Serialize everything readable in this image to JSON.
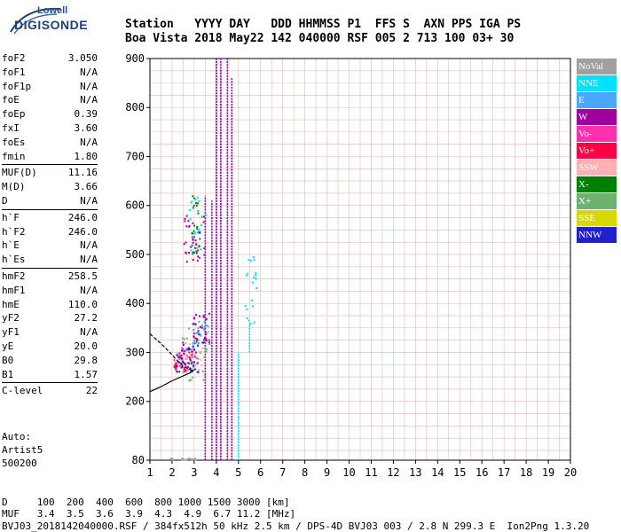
{
  "logo": {
    "top": "Lowell",
    "bottom": "DIGISONDE"
  },
  "header": {
    "line1": "Station   YYYY DAY   DDD HHMMSS P1  FFS S  AXN PPS IGA PS",
    "line2": "Boa Vista 2018 May22 142 040000 RSF 005 2 713 100 03+ 30"
  },
  "params": [
    {
      "name": "foF2",
      "value": "3.050"
    },
    {
      "name": "foF1",
      "value": "N/A"
    },
    {
      "name": "foF1p",
      "value": "N/A"
    },
    {
      "name": "foE",
      "value": "N/A"
    },
    {
      "name": "foEp",
      "value": "0.39"
    },
    {
      "name": "fxI",
      "value": "3.60"
    },
    {
      "name": "foEs",
      "value": "N/A"
    },
    {
      "name": "fmin",
      "value": "1.80"
    },
    {
      "sep": true
    },
    {
      "name": "MUF(D)",
      "value": "11.16"
    },
    {
      "name": "M(D)",
      "value": "3.66"
    },
    {
      "name": "D",
      "value": "N/A"
    },
    {
      "sep": true
    },
    {
      "name": "h`F",
      "value": "246.0"
    },
    {
      "name": "h`F2",
      "value": "246.0"
    },
    {
      "name": "h`E",
      "value": "N/A"
    },
    {
      "name": "h`Es",
      "value": "N/A"
    },
    {
      "sep": true
    },
    {
      "name": "hmF2",
      "value": "258.5"
    },
    {
      "name": "hmF1",
      "value": "N/A"
    },
    {
      "name": "hmE",
      "value": "110.0"
    },
    {
      "name": "yF2",
      "value": "27.2"
    },
    {
      "name": "yF1",
      "value": "N/A"
    },
    {
      "name": "yE",
      "value": "20.0"
    },
    {
      "name": "B0",
      "value": "29.8"
    },
    {
      "name": "B1",
      "value": "1.57"
    },
    {
      "sep": true
    },
    {
      "name": "C-level",
      "value": "22"
    }
  ],
  "auto": [
    "Auto:",
    "Artist5",
    "500200"
  ],
  "footer": {
    "line1": "D     100  200  400  600  800 1000 1500 3000 [km]",
    "line2": "MUF   3.4  3.5  3.6  3.9  4.3  4.9  6.7 11.2 [MHz]",
    "line3": "BVJ03_2018142040000.RSF / 384fx512h 50 kHz 2.5 km / DPS-4D BVJ03 003 / 2.8 N 299.3 E  Ion2Png 1.3.20"
  },
  "legend": [
    {
      "label": "NoVal",
      "color": "#a0a0a0"
    },
    {
      "label": "NNE",
      "color": "#00e0ff"
    },
    {
      "label": "E",
      "color": "#48a8ff"
    },
    {
      "label": "W",
      "color": "#a000a0"
    },
    {
      "label": "Vo-",
      "color": "#ff30b0"
    },
    {
      "label": "Vo+",
      "color": "#ff0040"
    },
    {
      "label": "SSW",
      "color": "#ffb0b0"
    },
    {
      "label": "X-",
      "color": "#008000"
    },
    {
      "label": "X+",
      "color": "#70b070"
    },
    {
      "label": "SSE",
      "color": "#d8d800"
    },
    {
      "label": "NNW",
      "color": "#2020d0"
    }
  ],
  "chart_data": {
    "type": "scatter",
    "title": "",
    "xlabel": "",
    "ylabel": "",
    "x_unit": "MHz",
    "y_unit": "km",
    "xlim": [
      1,
      20
    ],
    "ylim": [
      80,
      900
    ],
    "x_ticks": [
      1,
      2,
      3,
      4,
      5,
      6,
      7,
      8,
      9,
      10,
      11,
      12,
      13,
      14,
      15,
      16,
      17,
      18,
      19,
      20
    ],
    "y_ticks": [
      80,
      200,
      300,
      400,
      500,
      600,
      700,
      800,
      900
    ],
    "grid": true,
    "legend_position": "right",
    "traces": [
      {
        "name": "W",
        "color": "#a000a0",
        "x": [
          4.0,
          4.0,
          4.2,
          4.2,
          4.5,
          4.7,
          4.7
        ],
        "y": [
          [
            80,
            900
          ],
          [
            80,
            900
          ],
          [
            80,
            900
          ],
          [
            80,
            880
          ],
          [
            80,
            900
          ],
          [
            80,
            860
          ],
          [
            80,
            820
          ]
        ]
      },
      {
        "name": "W",
        "color": "#a000a0",
        "x": [
          3.5,
          3.8
        ],
        "y": [
          [
            80,
            620
          ],
          [
            80,
            610
          ]
        ]
      },
      {
        "name": "NNE",
        "color": "#00e0ff",
        "x": [
          5.0,
          5.5
        ],
        "y": [
          [
            80,
            300
          ],
          [
            300,
            360
          ]
        ]
      }
    ],
    "scatter_groups": [
      {
        "name": "W",
        "color": "#a000a0",
        "center": [
          3.0,
          530
        ],
        "spread": [
          0.5,
          50
        ],
        "n": 40
      },
      {
        "name": "X-",
        "color": "#008000",
        "center": [
          3.1,
          560
        ],
        "spread": [
          0.2,
          60
        ],
        "n": 25
      },
      {
        "name": "NNE",
        "color": "#00e0ff",
        "center": [
          3.2,
          560
        ],
        "spread": [
          0.4,
          60
        ],
        "n": 20
      },
      {
        "name": "X+",
        "color": "#70b070",
        "center": [
          3.0,
          300
        ],
        "spread": [
          0.6,
          60
        ],
        "n": 40
      },
      {
        "name": "Vo-",
        "color": "#ff30b0",
        "center": [
          2.6,
          285
        ],
        "spread": [
          0.5,
          25
        ],
        "n": 40
      },
      {
        "name": "Vo+",
        "color": "#ff0040",
        "center": [
          2.5,
          280
        ],
        "spread": [
          0.4,
          20
        ],
        "n": 30
      },
      {
        "name": "SSW",
        "color": "#ffb0b0",
        "center": [
          3.0,
          290
        ],
        "spread": [
          0.4,
          30
        ],
        "n": 30
      },
      {
        "name": "NNW",
        "color": "#2020d0",
        "center": [
          2.7,
          290
        ],
        "spread": [
          0.5,
          30
        ],
        "n": 35
      },
      {
        "name": "E",
        "color": "#48a8ff",
        "center": [
          3.3,
          340
        ],
        "spread": [
          0.4,
          30
        ],
        "n": 30
      },
      {
        "name": "W",
        "color": "#a000a0",
        "center": [
          3.3,
          350
        ],
        "spread": [
          0.4,
          30
        ],
        "n": 30
      },
      {
        "name": "NNE",
        "color": "#00e0ff",
        "center": [
          5.6,
          420
        ],
        "spread": [
          0.3,
          80
        ],
        "n": 20
      },
      {
        "name": "NoVal",
        "color": "#a0a0a0",
        "center": [
          2.5,
          82
        ],
        "spread": [
          0.6,
          2
        ],
        "n": 20
      }
    ],
    "profile_curves": [
      {
        "x": [
          1.0,
          1.5,
          1.9,
          2.2,
          2.5,
          2.8,
          3.0
        ],
        "y": [
          338,
          318,
          300,
          285,
          272,
          265,
          262
        ]
      },
      {
        "x": [
          1.0,
          1.5,
          2.0,
          2.5,
          2.8,
          3.0
        ],
        "y": [
          220,
          230,
          242,
          252,
          258,
          265
        ]
      }
    ]
  }
}
